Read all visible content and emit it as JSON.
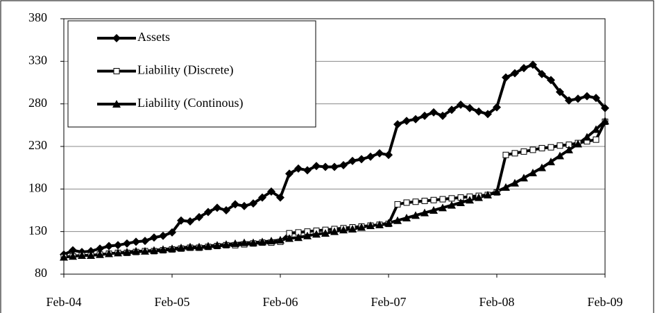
{
  "chart_data": {
    "type": "line",
    "categories": [
      "Feb-04",
      null,
      null,
      null,
      null,
      null,
      null,
      null,
      null,
      null,
      null,
      null,
      "Feb-05",
      null,
      null,
      null,
      null,
      null,
      null,
      null,
      null,
      null,
      null,
      null,
      "Feb-06",
      null,
      null,
      null,
      null,
      null,
      null,
      null,
      null,
      null,
      null,
      null,
      "Feb-07",
      null,
      null,
      null,
      null,
      null,
      null,
      null,
      null,
      null,
      null,
      null,
      "Feb-08",
      null,
      null,
      null,
      null,
      null,
      null,
      null,
      null,
      null,
      null,
      null,
      "Feb-09"
    ],
    "series": [
      {
        "name": "Assets",
        "color": "#000000",
        "marker": "diamond",
        "values": [
          103,
          108,
          106,
          107,
          110,
          113,
          114,
          116,
          118,
          119,
          123,
          125,
          129,
          143,
          142,
          147,
          153,
          158,
          155,
          162,
          160,
          163,
          170,
          177,
          170,
          198,
          204,
          202,
          207,
          206,
          206,
          208,
          213,
          215,
          218,
          222,
          220,
          256,
          260,
          262,
          266,
          270,
          266,
          273,
          279,
          275,
          271,
          268,
          276,
          311,
          316,
          322,
          326,
          315,
          308,
          294,
          284,
          286,
          289,
          287,
          275
        ]
      },
      {
        "name": "Liability (Discrete)",
        "color": "#000000",
        "marker": "square",
        "values": [
          100,
          101,
          102,
          102,
          103,
          104,
          105,
          105,
          106,
          107,
          107,
          108,
          109,
          110,
          111,
          111,
          112,
          113,
          114,
          114,
          115,
          116,
          117,
          117,
          118,
          128,
          129,
          130,
          131,
          132,
          133,
          134,
          135,
          136,
          137,
          138,
          139,
          162,
          164,
          165,
          166,
          167,
          168,
          169,
          170,
          171,
          172,
          173,
          176,
          220,
          222,
          224,
          226,
          228,
          229,
          231,
          232,
          234,
          236,
          238,
          259
        ]
      },
      {
        "name": "Liability (Continous)",
        "color": "#000000",
        "marker": "triangle",
        "values": [
          100,
          101,
          102,
          102,
          103,
          104,
          105,
          106,
          107,
          107,
          108,
          109,
          110,
          111,
          112,
          112,
          113,
          114,
          115,
          116,
          117,
          117,
          118,
          119,
          120,
          122,
          123,
          125,
          127,
          128,
          130,
          132,
          133,
          135,
          137,
          138,
          140,
          143,
          146,
          149,
          152,
          155,
          158,
          161,
          164,
          167,
          170,
          173,
          177,
          182,
          187,
          193,
          199,
          205,
          212,
          219,
          226,
          233,
          241,
          250,
          260
        ]
      }
    ],
    "ylim": [
      80,
      380
    ],
    "yticks": [
      80,
      130,
      180,
      230,
      280,
      330,
      380
    ],
    "grid": true,
    "legend": "upper left"
  }
}
